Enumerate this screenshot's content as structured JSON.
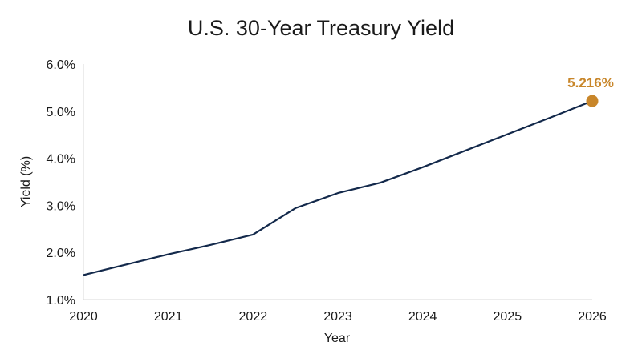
{
  "chart_data": {
    "type": "line",
    "title": "U.S. 30-Year Treasury Yield",
    "xlabel": "Year",
    "ylabel": "Yield (%)",
    "xlim": [
      2020,
      2026
    ],
    "ylim": [
      1.0,
      6.0
    ],
    "x_ticks": [
      "2020",
      "2021",
      "2022",
      "2023",
      "2024",
      "2025",
      "2026"
    ],
    "y_ticks": [
      "1.0%",
      "2.0%",
      "3.0%",
      "4.0%",
      "5.0%",
      "6.0%"
    ],
    "grid": false,
    "series": [
      {
        "x": [
          2020,
          2021,
          2021.5,
          2022,
          2022.5,
          2023,
          2023.5,
          2024,
          2024.5,
          2025,
          2025.5,
          2026
        ],
        "values": [
          1.52,
          1.96,
          2.16,
          2.38,
          2.94,
          3.26,
          3.48,
          3.81,
          4.16,
          4.51,
          4.86,
          5.216
        ]
      }
    ],
    "annotation": {
      "text": "5.216%",
      "x": 2026,
      "y": 5.216
    },
    "colors": {
      "line": "#13294b",
      "highlight": "#c8862a"
    }
  }
}
